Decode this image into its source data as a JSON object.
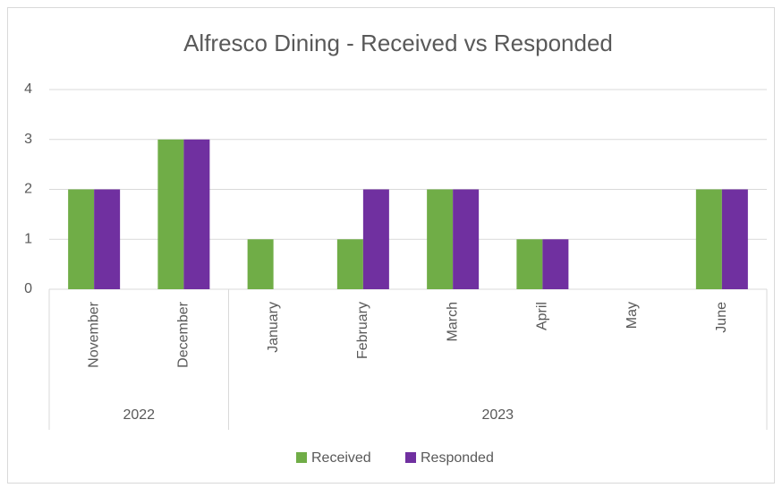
{
  "chart_data": {
    "type": "bar",
    "title": "Alfresco Dining - Received vs Responded",
    "categories": [
      "November",
      "December",
      "January",
      "February",
      "March",
      "April",
      "May",
      "June"
    ],
    "category_groups": [
      {
        "label": "2022",
        "count": 2
      },
      {
        "label": "2023",
        "count": 6
      }
    ],
    "series": [
      {
        "name": "Received",
        "color": "#70ad47",
        "values": [
          2,
          3,
          1,
          1,
          2,
          1,
          0,
          2
        ]
      },
      {
        "name": "Responded",
        "color": "#7030a0",
        "values": [
          2,
          3,
          0,
          2,
          2,
          1,
          0,
          2
        ]
      }
    ],
    "ylim": [
      0,
      4
    ],
    "yticks": [
      0,
      1,
      2,
      3,
      4
    ],
    "grid": true,
    "legend": "bottom"
  }
}
